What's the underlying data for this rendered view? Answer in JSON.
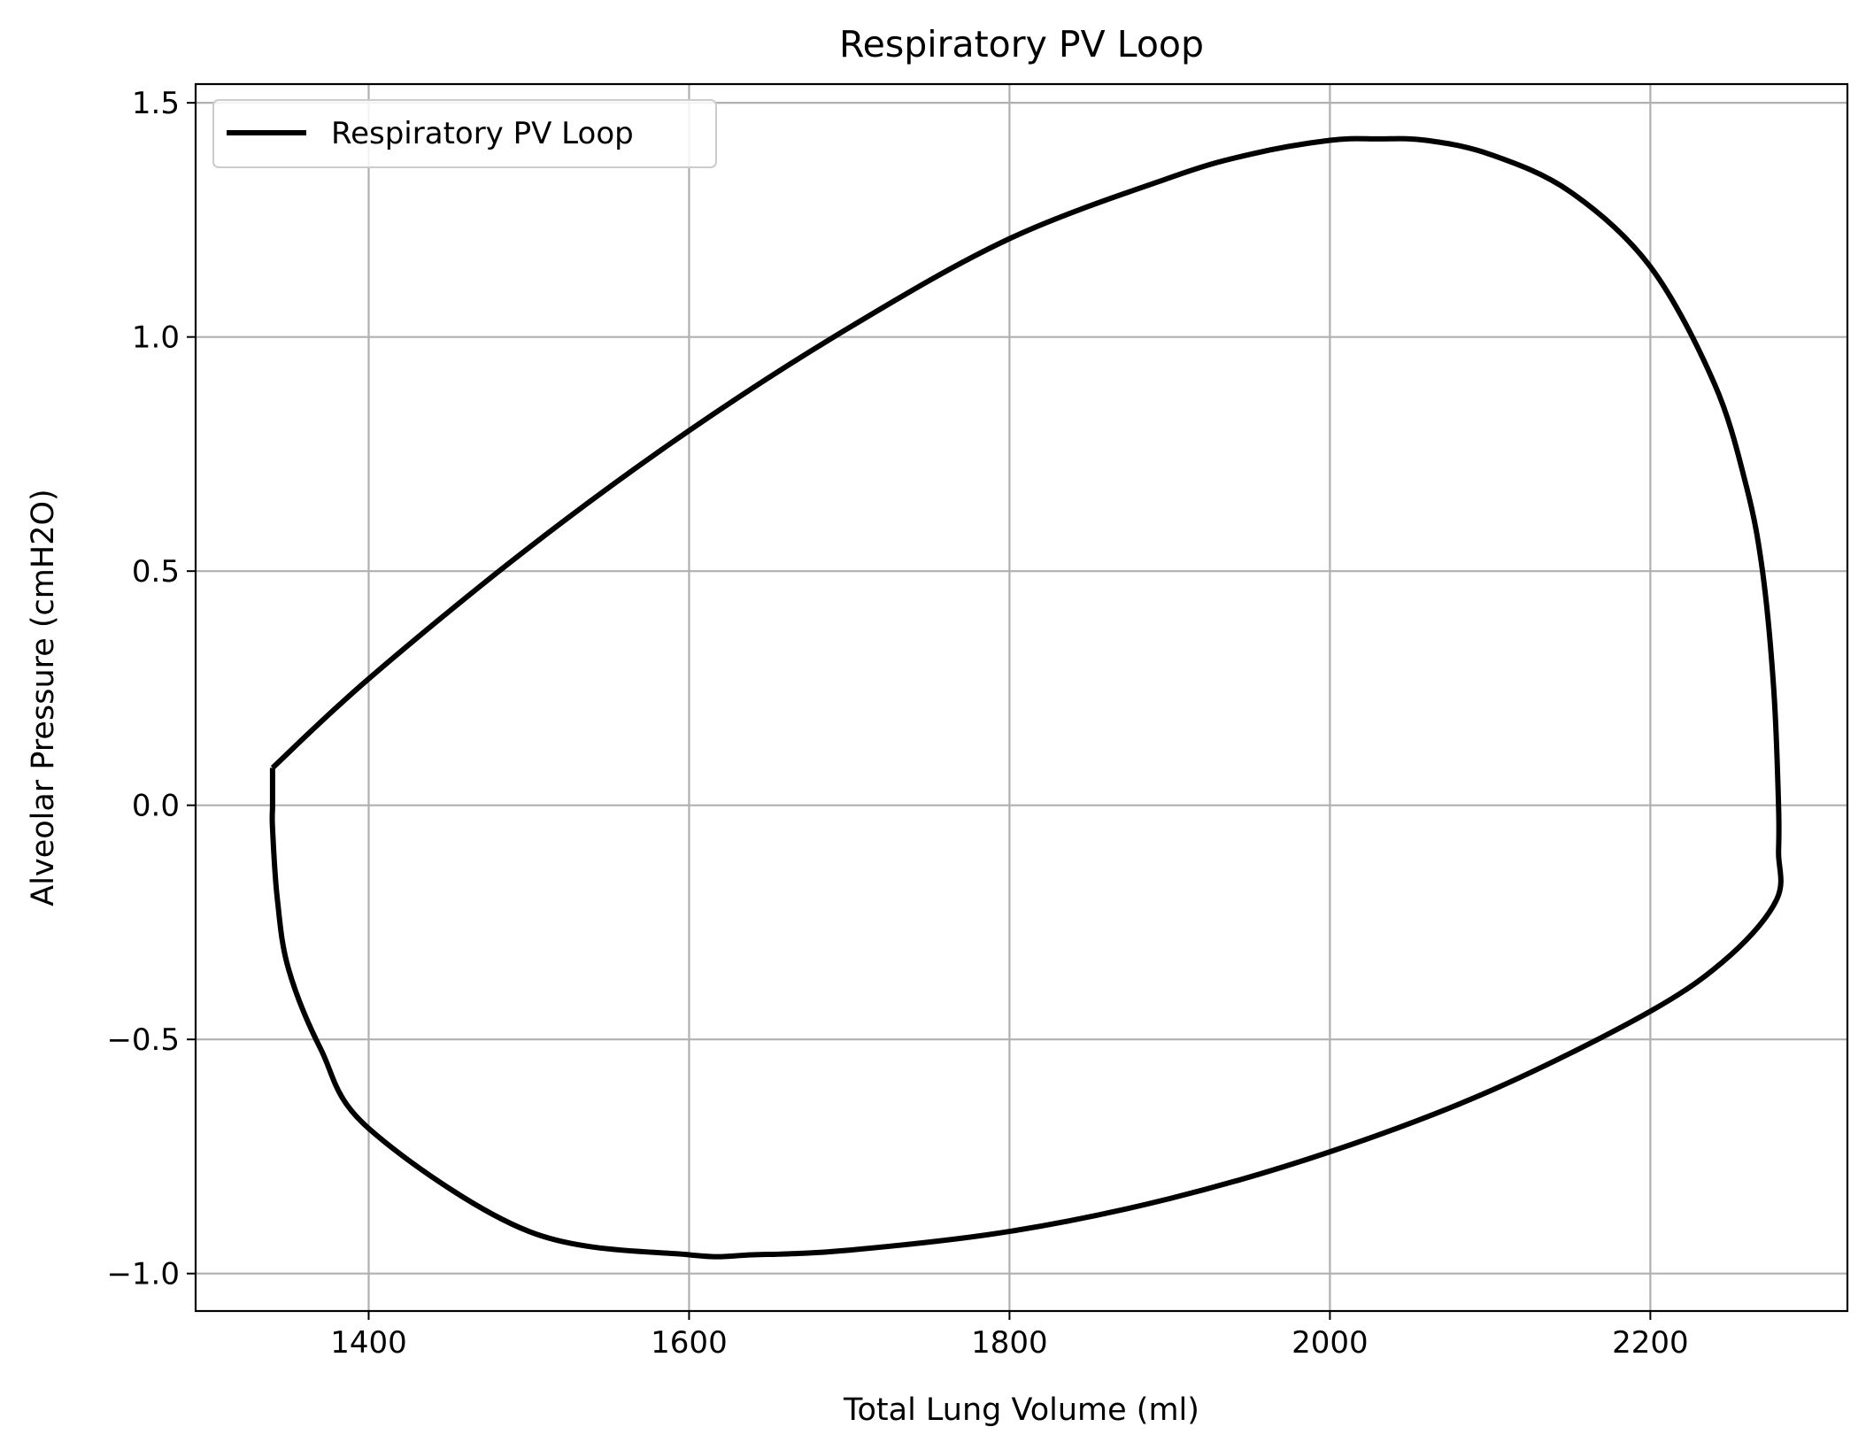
{
  "chart_data": {
    "type": "line",
    "title": "Respiratory PV Loop",
    "xlabel": "Total Lung Volume (ml)",
    "ylabel": "Alveolar Pressure (cmH2O)",
    "xlim": [
      1292,
      2323
    ],
    "ylim": [
      -1.08,
      1.54
    ],
    "x_ticks": [
      1400,
      1600,
      1800,
      2000,
      2200
    ],
    "y_ticks": [
      -1.0,
      -0.5,
      0.0,
      0.5,
      1.0,
      1.5
    ],
    "x_tick_labels": [
      "1400",
      "1600",
      "1800",
      "2000",
      "2200"
    ],
    "y_tick_labels": [
      "−1.0",
      "−0.5",
      "0.0",
      "0.5",
      "1.0",
      "1.5"
    ],
    "grid": true,
    "legend_position": "top-left",
    "series": [
      {
        "name": "Respiratory PV Loop",
        "color": "#000000",
        "x": [
          1340,
          1400,
          1500,
          1600,
          1700,
          1800,
          1900,
          1950,
          2000,
          2030,
          2060,
          2100,
          2150,
          2200,
          2240,
          2260,
          2270,
          2277,
          2280,
          2280,
          2279,
          2250,
          2200,
          2100,
          2000,
          1900,
          1800,
          1700,
          1640,
          1600,
          1500,
          1400,
          1370,
          1350,
          1343,
          1340,
          1340,
          1340
        ],
        "y": [
          0.08,
          0.27,
          0.55,
          0.8,
          1.02,
          1.21,
          1.34,
          1.39,
          1.42,
          1.423,
          1.42,
          1.39,
          1.31,
          1.15,
          0.9,
          0.68,
          0.5,
          0.25,
          0.0,
          -0.1,
          -0.2,
          -0.32,
          -0.44,
          -0.61,
          -0.74,
          -0.84,
          -0.91,
          -0.95,
          -0.96,
          -0.96,
          -0.91,
          -0.69,
          -0.52,
          -0.35,
          -0.2,
          -0.05,
          0.0,
          0.08
        ]
      }
    ]
  }
}
